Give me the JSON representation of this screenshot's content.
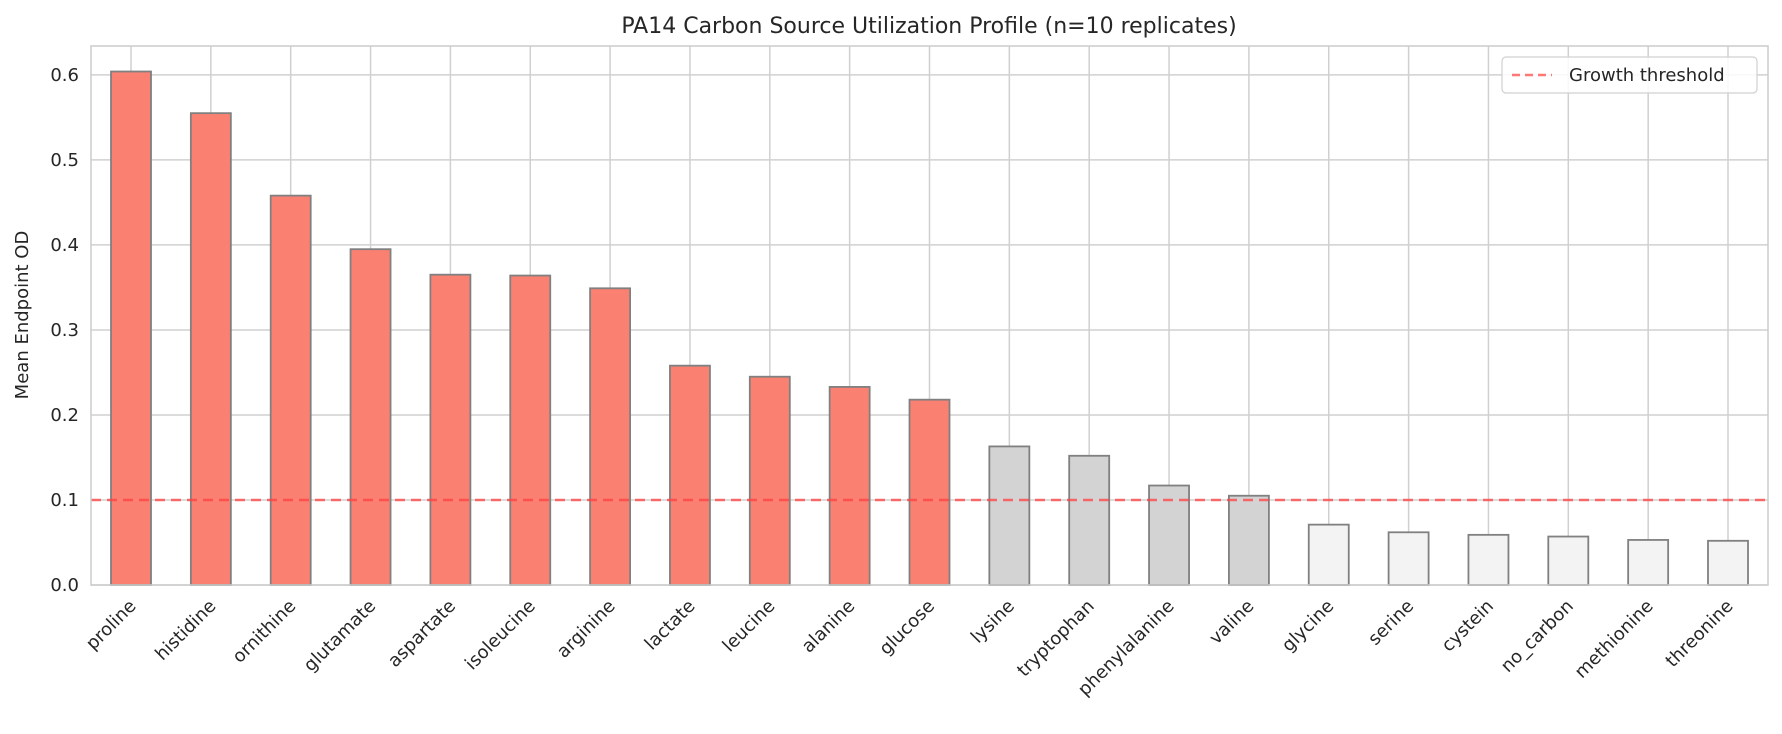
{
  "chart_data": {
    "type": "bar",
    "title": "PA14 Carbon Source Utilization Profile (n=10 replicates)",
    "xlabel": "",
    "ylabel": "Mean Endpoint OD",
    "ylim": [
      0,
      0.634
    ],
    "yticks": [
      0.0,
      0.1,
      0.2,
      0.3,
      0.4,
      0.5,
      0.6
    ],
    "ytick_labels": [
      "0.0",
      "0.1",
      "0.2",
      "0.3",
      "0.4",
      "0.5",
      "0.6"
    ],
    "grid": true,
    "legend_position": "upper right",
    "categories": [
      "proline",
      "histidine",
      "ornithine",
      "glutamate",
      "aspartate",
      "isoleucine",
      "arginine",
      "lactate",
      "leucine",
      "alanine",
      "glucose",
      "lysine",
      "tryptophan",
      "phenylalanine",
      "valine",
      "glycine",
      "serine",
      "cystein",
      "no_carbon",
      "methionine",
      "threonine"
    ],
    "values": [
      0.604,
      0.555,
      0.458,
      0.395,
      0.365,
      0.364,
      0.349,
      0.258,
      0.245,
      0.233,
      0.218,
      0.163,
      0.152,
      0.117,
      0.105,
      0.071,
      0.062,
      0.059,
      0.057,
      0.053,
      0.052
    ],
    "bar_groups": [
      "strong",
      "strong",
      "strong",
      "strong",
      "strong",
      "strong",
      "strong",
      "strong",
      "strong",
      "strong",
      "strong",
      "weak",
      "weak",
      "weak",
      "weak",
      "none",
      "none",
      "none",
      "none",
      "none",
      "none"
    ],
    "annotations": [
      {
        "type": "hline",
        "y": 0.1,
        "style": "dashed",
        "color": "#ff4040",
        "label": "Growth threshold"
      }
    ],
    "legend": [
      {
        "label": "Growth threshold",
        "style": "dashed",
        "color": "#ff4040"
      }
    ]
  },
  "colors": {
    "strong": "#fa8072",
    "weak": "#d3d3d3",
    "none": "#f3f3f3",
    "edge": "#808080",
    "grid": "#d0d0d0",
    "threshold": "#ff4040",
    "spine": "#cccccc"
  }
}
